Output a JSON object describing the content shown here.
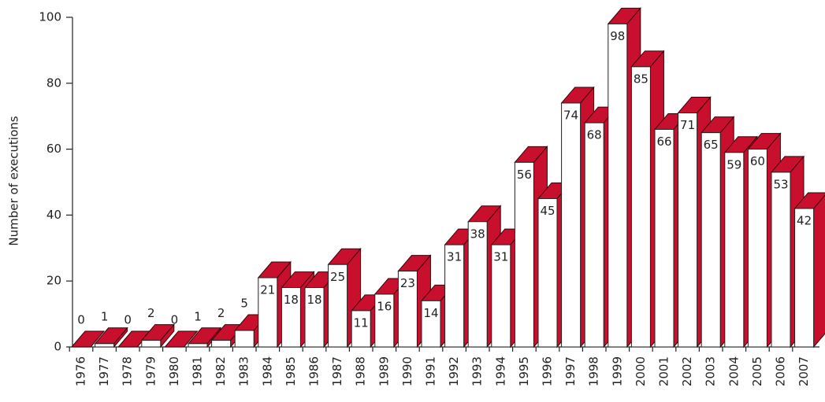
{
  "chart_data": {
    "type": "bar3d",
    "y_label": "Number of executions",
    "categories": [
      "1976",
      "1977",
      "1978",
      "1979",
      "1980",
      "1981",
      "1982",
      "1983",
      "1984",
      "1985",
      "1986",
      "1987",
      "1988",
      "1989",
      "1990",
      "1991",
      "1992",
      "1993",
      "1994",
      "1995",
      "1996",
      "1997",
      "1998",
      "1999",
      "2000",
      "2001",
      "2002",
      "2003",
      "2004",
      "2005",
      "2006",
      "2007"
    ],
    "values": [
      0,
      1,
      0,
      2,
      0,
      1,
      2,
      5,
      21,
      18,
      18,
      25,
      11,
      16,
      23,
      14,
      31,
      38,
      31,
      56,
      45,
      74,
      68,
      98,
      85,
      66,
      71,
      65,
      59,
      60,
      53,
      42
    ],
    "color": "#c8102e",
    "ylim": [
      0,
      100
    ],
    "yticks": [
      0,
      20,
      40,
      60,
      80,
      100
    ]
  }
}
